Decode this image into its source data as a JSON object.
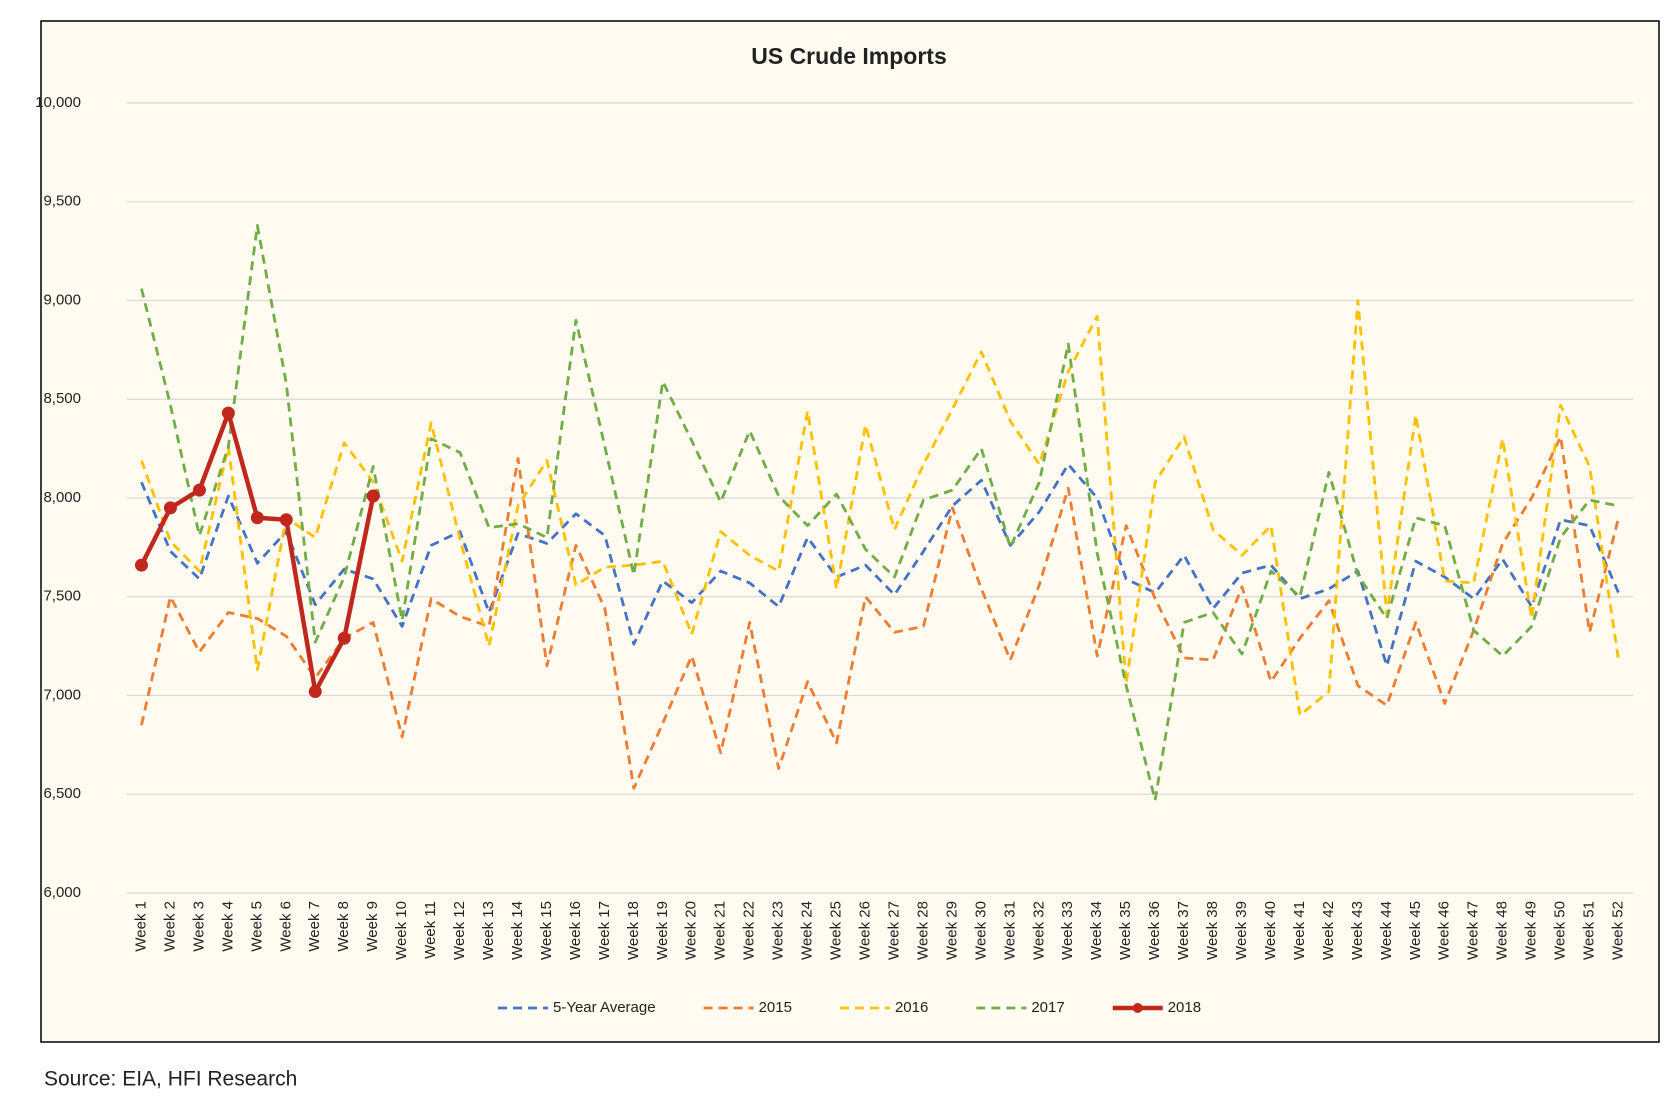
{
  "chart_data": {
    "type": "line",
    "title": "US Crude Imports",
    "source": "Source: EIA, HFI Research",
    "categories": [
      "Week 1",
      "Week 2",
      "Week 3",
      "Week 4",
      "Week 5",
      "Week 6",
      "Week 7",
      "Week 8",
      "Week 9",
      "Week 10",
      "Week 11",
      "Week 12",
      "Week 13",
      "Week 14",
      "Week 15",
      "Week 16",
      "Week 17",
      "Week 18",
      "Week 19",
      "Week 20",
      "Week 21",
      "Week 22",
      "Week 23",
      "Week 24",
      "Week 25",
      "Week 26",
      "Week 27",
      "Week 28",
      "Week 29",
      "Week 30",
      "Week 31",
      "Week 32",
      "Week 33",
      "Week 34",
      "Week 35",
      "Week 36",
      "Week 37",
      "Week 38",
      "Week 39",
      "Week 40",
      "Week 41",
      "Week 42",
      "Week 43",
      "Week 44",
      "Week 45",
      "Week 46",
      "Week 47",
      "Week 48",
      "Week 49",
      "Week 50",
      "Week 51",
      "Week 52"
    ],
    "series": [
      {
        "name": "5-Year Average",
        "color": "#4472c4",
        "line_style": "dashed",
        "markers": false,
        "values": [
          8080,
          7730,
          7590,
          8010,
          7670,
          7830,
          7460,
          7640,
          7590,
          7350,
          7760,
          7830,
          7420,
          7820,
          7770,
          7920,
          7810,
          7260,
          7580,
          7470,
          7630,
          7570,
          7450,
          7800,
          7600,
          7660,
          7510,
          7730,
          7960,
          8090,
          7760,
          7930,
          8170,
          8000,
          7590,
          7520,
          7710,
          7440,
          7620,
          7660,
          7490,
          7540,
          7630,
          7150,
          7680,
          7600,
          7490,
          7690,
          7450,
          7890,
          7860,
          7520
        ]
      },
      {
        "name": "2015",
        "color": "#ed7d31",
        "line_style": "dashed",
        "markers": false,
        "values": [
          6850,
          7500,
          7220,
          7420,
          7390,
          7300,
          7090,
          7290,
          7370,
          6790,
          7490,
          7400,
          7350,
          8200,
          7150,
          7760,
          7440,
          6530,
          6860,
          7200,
          6710,
          7370,
          6630,
          7070,
          6760,
          7500,
          7320,
          7350,
          7950,
          7540,
          7180,
          7560,
          8050,
          7200,
          7860,
          7490,
          7190,
          7180,
          7550,
          7070,
          7290,
          7480,
          7050,
          6950,
          7370,
          6960,
          7330,
          7770,
          8000,
          8310,
          7320,
          7900
        ]
      },
      {
        "name": "2016",
        "color": "#ffc000",
        "line_style": "dashed",
        "markers": false,
        "values": [
          8190,
          7780,
          7630,
          8260,
          7130,
          7900,
          7800,
          8280,
          8080,
          7680,
          8380,
          7790,
          7250,
          7960,
          8190,
          7560,
          7650,
          7660,
          7680,
          7310,
          7830,
          7710,
          7630,
          8440,
          7540,
          8370,
          7840,
          8170,
          8450,
          8740,
          8390,
          8170,
          8640,
          8920,
          7060,
          8080,
          8310,
          7840,
          7710,
          7860,
          6900,
          7020,
          9000,
          7410,
          8420,
          7580,
          7570,
          8300,
          7390,
          8470,
          8160,
          7180
        ]
      },
      {
        "name": "2017",
        "color": "#70ad47",
        "line_style": "dashed",
        "markers": false,
        "values": [
          9060,
          8470,
          7810,
          8260,
          9380,
          8580,
          7270,
          7600,
          8160,
          7380,
          8300,
          8230,
          7850,
          7870,
          7800,
          8900,
          8260,
          7610,
          8590,
          8290,
          7980,
          8340,
          8010,
          7860,
          8020,
          7740,
          7600,
          7990,
          8040,
          8250,
          7750,
          8080,
          8780,
          7720,
          7050,
          6470,
          7370,
          7420,
          7210,
          7630,
          7500,
          8130,
          7610,
          7390,
          7900,
          7860,
          7330,
          7200,
          7350,
          7800,
          7990,
          7960
        ]
      },
      {
        "name": "2018",
        "color": "#c0281e",
        "line_style": "solid",
        "markers": true,
        "values": [
          7660,
          7950,
          8040,
          8430,
          7900,
          7890,
          7020,
          7290,
          8010,
          null,
          null,
          null,
          null,
          null,
          null,
          null,
          null,
          null,
          null,
          null,
          null,
          null,
          null,
          null,
          null,
          null,
          null,
          null,
          null,
          null,
          null,
          null,
          null,
          null,
          null,
          null,
          null,
          null,
          null,
          null,
          null,
          null,
          null,
          null,
          null,
          null,
          null,
          null,
          null,
          null,
          null,
          null
        ]
      }
    ],
    "ylim": [
      6000,
      10000
    ],
    "yticks": [
      {
        "value": 6000,
        "label": "6,000"
      },
      {
        "value": 6500,
        "label": "6,500"
      },
      {
        "value": 7000,
        "label": "7,000"
      },
      {
        "value": 7500,
        "label": "7,500"
      },
      {
        "value": 8000,
        "label": "8,000"
      },
      {
        "value": 8500,
        "label": "8,500"
      },
      {
        "value": 9000,
        "label": "9,000"
      },
      {
        "value": 9500,
        "label": "9,500"
      },
      {
        "value": 10000,
        "label": "10,000"
      }
    ],
    "grid": true,
    "legend": "bottom"
  }
}
